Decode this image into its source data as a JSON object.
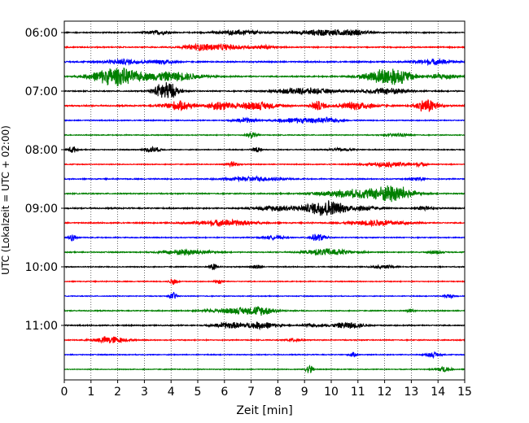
{
  "chart_data": {
    "type": "line",
    "title": "",
    "xlabel": "Zeit  [min]",
    "ylabel": "UTC (Lokalzeit = UTC + 02:00)",
    "xlim": [
      0,
      15
    ],
    "x_ticks": [
      "0",
      "1",
      "2",
      "3",
      "4",
      "5",
      "6",
      "7",
      "8",
      "9",
      "10",
      "11",
      "12",
      "13",
      "14",
      "15"
    ],
    "y_tick_labels": [
      "06:00",
      "07:00",
      "08:00",
      "09:00",
      "10:00",
      "11:00"
    ],
    "y_tick_trace_index": [
      0,
      4,
      8,
      12,
      16,
      20
    ],
    "grid": "vertical dotted",
    "legend": "none",
    "trace_interval_minutes": 15,
    "start_time_utc": "06:00",
    "trace_colors": [
      "#000000",
      "#ff0000",
      "#0000ff",
      "#008000"
    ],
    "series": [
      {
        "start": "06:00",
        "color": "#000000",
        "noise": 0.7,
        "events": [
          [
            3.5,
            0.3,
            2.6
          ],
          [
            6.6,
            0.6,
            3
          ],
          [
            9.8,
            0.8,
            4
          ],
          [
            10.9,
            0.3,
            2.2
          ]
        ]
      },
      {
        "start": "06:15",
        "color": "#ff0000",
        "noise": 0.7,
        "events": [
          [
            5.0,
            0.4,
            3.2
          ],
          [
            6.0,
            0.6,
            3.5
          ],
          [
            7.5,
            0.3,
            2.2
          ]
        ]
      },
      {
        "start": "06:30",
        "color": "#0000ff",
        "noise": 0.8,
        "events": [
          [
            2.3,
            0.6,
            3.2
          ],
          [
            3.8,
            0.3,
            2.8
          ],
          [
            13.8,
            0.5,
            3.5
          ]
        ]
      },
      {
        "start": "06:45",
        "color": "#008000",
        "noise": 0.8,
        "events": [
          [
            1.9,
            0.6,
            12
          ],
          [
            4.0,
            0.8,
            6
          ],
          [
            12.2,
            0.6,
            12
          ],
          [
            14.2,
            0.3,
            4
          ]
        ]
      },
      {
        "start": "07:00",
        "color": "#000000",
        "noise": 0.7,
        "events": [
          [
            3.8,
            0.3,
            13
          ],
          [
            9.0,
            0.8,
            4
          ],
          [
            12.1,
            0.6,
            4
          ]
        ]
      },
      {
        "start": "07:15",
        "color": "#ff0000",
        "noise": 0.8,
        "events": [
          [
            4.3,
            0.4,
            6
          ],
          [
            5.8,
            0.3,
            6
          ],
          [
            7.2,
            0.6,
            5
          ],
          [
            9.5,
            0.2,
            6
          ],
          [
            11.0,
            0.5,
            5
          ],
          [
            13.6,
            0.3,
            9
          ]
        ]
      },
      {
        "start": "07:30",
        "color": "#0000ff",
        "noise": 0.6,
        "events": [
          [
            6.8,
            0.3,
            3
          ],
          [
            8.8,
            0.6,
            3.5
          ],
          [
            9.9,
            0.3,
            2.5
          ]
        ]
      },
      {
        "start": "07:45",
        "color": "#008000",
        "noise": 0.55,
        "events": [
          [
            7.0,
            0.15,
            4
          ],
          [
            12.5,
            0.3,
            2.2
          ]
        ]
      },
      {
        "start": "08:00",
        "color": "#000000",
        "noise": 0.55,
        "events": [
          [
            0.3,
            0.1,
            5
          ],
          [
            3.3,
            0.2,
            4
          ],
          [
            7.2,
            0.1,
            5
          ],
          [
            10.4,
            0.3,
            2
          ]
        ]
      },
      {
        "start": "08:15",
        "color": "#ff0000",
        "noise": 0.55,
        "events": [
          [
            6.3,
            0.15,
            4
          ],
          [
            12.2,
            0.6,
            3
          ],
          [
            13.3,
            0.2,
            2
          ]
        ]
      },
      {
        "start": "08:30",
        "color": "#0000ff",
        "noise": 0.65,
        "events": [
          [
            7.1,
            0.7,
            3
          ],
          [
            13.2,
            0.2,
            3
          ]
        ]
      },
      {
        "start": "08:45",
        "color": "#008000",
        "noise": 0.7,
        "events": [
          [
            10.4,
            0.7,
            4
          ],
          [
            12.3,
            0.5,
            12
          ],
          [
            11.2,
            0.4,
            3
          ]
        ]
      },
      {
        "start": "09:00",
        "color": "#000000",
        "noise": 0.75,
        "events": [
          [
            8.0,
            0.6,
            3.5
          ],
          [
            9.8,
            0.5,
            11
          ],
          [
            11.2,
            0.4,
            3.2
          ],
          [
            13.5,
            0.2,
            3
          ]
        ]
      },
      {
        "start": "09:15",
        "color": "#ff0000",
        "noise": 0.7,
        "events": [
          [
            6.0,
            0.8,
            4
          ],
          [
            11.8,
            0.7,
            4
          ]
        ]
      },
      {
        "start": "09:30",
        "color": "#0000ff",
        "noise": 0.6,
        "events": [
          [
            0.3,
            0.1,
            5
          ],
          [
            7.8,
            0.3,
            2.2
          ],
          [
            9.5,
            0.2,
            5
          ]
        ]
      },
      {
        "start": "09:45",
        "color": "#008000",
        "noise": 0.6,
        "events": [
          [
            4.6,
            0.6,
            4
          ],
          [
            9.9,
            0.6,
            4.5
          ],
          [
            13.9,
            0.2,
            2
          ]
        ]
      },
      {
        "start": "10:00",
        "color": "#000000",
        "noise": 0.6,
        "events": [
          [
            5.6,
            0.1,
            4.5
          ],
          [
            7.2,
            0.1,
            3.5
          ],
          [
            12.0,
            0.3,
            2.2
          ]
        ]
      },
      {
        "start": "10:15",
        "color": "#ff0000",
        "noise": 0.55,
        "events": [
          [
            4.1,
            0.1,
            5
          ],
          [
            5.8,
            0.1,
            2.5
          ]
        ]
      },
      {
        "start": "10:30",
        "color": "#0000ff",
        "noise": 0.5,
        "events": [
          [
            4.1,
            0.1,
            5
          ],
          [
            14.4,
            0.15,
            2.5
          ]
        ]
      },
      {
        "start": "10:45",
        "color": "#008000",
        "noise": 0.6,
        "events": [
          [
            6.6,
            0.8,
            4
          ],
          [
            7.4,
            0.3,
            3.5
          ],
          [
            13.0,
            0.1,
            2.5
          ]
        ]
      },
      {
        "start": "11:00",
        "color": "#000000",
        "noise": 0.7,
        "events": [
          [
            6.2,
            0.4,
            4
          ],
          [
            7.4,
            0.4,
            4.5
          ],
          [
            10.6,
            0.4,
            4
          ],
          [
            9.2,
            0.2,
            2
          ]
        ]
      },
      {
        "start": "11:15",
        "color": "#ff0000",
        "noise": 0.6,
        "events": [
          [
            1.7,
            0.4,
            5
          ],
          [
            8.6,
            0.2,
            2
          ]
        ]
      },
      {
        "start": "11:30",
        "color": "#0000ff",
        "noise": 0.55,
        "events": [
          [
            10.8,
            0.1,
            3
          ],
          [
            13.8,
            0.2,
            3
          ]
        ]
      },
      {
        "start": "11:45",
        "color": "#008000",
        "noise": 0.5,
        "events": [
          [
            9.2,
            0.1,
            6
          ],
          [
            14.2,
            0.2,
            3.5
          ]
        ]
      }
    ]
  }
}
